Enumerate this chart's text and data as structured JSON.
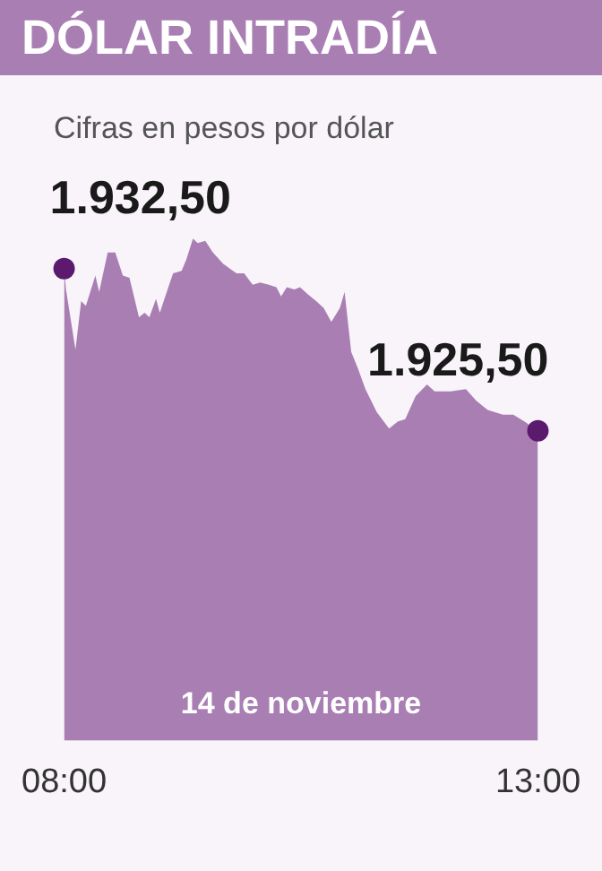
{
  "chart_data": {
    "type": "area",
    "title": "DÓLAR INTRADÍA",
    "subtitle": "Cifras en pesos por dólar",
    "xlabel": "14 de noviembre",
    "x": [
      8.0,
      8.02,
      8.12,
      8.18,
      8.23,
      8.33,
      8.37,
      8.46,
      8.54,
      8.62,
      8.69,
      8.79,
      8.85,
      8.9,
      8.97,
      9.01,
      9.1,
      9.15,
      9.24,
      9.29,
      9.36,
      9.41,
      9.49,
      9.57,
      9.68,
      9.82,
      9.9,
      9.99,
      10.07,
      10.16,
      10.24,
      10.29,
      10.35,
      10.43,
      10.49,
      10.57,
      10.66,
      10.74,
      10.82,
      10.91,
      10.96,
      11.03,
      11.1,
      11.18,
      11.3,
      11.43,
      11.52,
      11.6,
      11.71,
      11.83,
      11.91,
      12.08,
      12.24,
      12.35,
      12.47,
      12.63,
      12.74,
      12.86,
      13.0
    ],
    "xlim": [
      8,
      13
    ],
    "xticks": [
      {
        "value": 8,
        "label": "08:00"
      },
      {
        "value": 13,
        "label": "13:00"
      }
    ],
    "series": [
      {
        "color": "#a97fb3",
        "values": [
          1932.5,
          1931.6,
          1929.0,
          1931.1,
          1930.9,
          1932.2,
          1931.5,
          1933.2,
          1933.2,
          1932.2,
          1932.1,
          1930.4,
          1930.6,
          1930.4,
          1931.2,
          1930.6,
          1931.7,
          1932.3,
          1932.4,
          1932.9,
          1933.8,
          1933.6,
          1933.7,
          1933.2,
          1932.7,
          1932.3,
          1932.3,
          1931.8,
          1931.9,
          1931.8,
          1931.7,
          1931.3,
          1931.7,
          1931.6,
          1931.7,
          1931.4,
          1931.1,
          1930.8,
          1930.2,
          1930.8,
          1931.5,
          1928.9,
          1928.2,
          1927.3,
          1926.3,
          1925.6,
          1925.9,
          1926.0,
          1927.0,
          1927.5,
          1927.2,
          1927.2,
          1927.3,
          1926.8,
          1926.4,
          1926.2,
          1926.2,
          1925.9,
          1925.5
        ],
        "value_labels": [
          "1.932,50",
          null,
          null,
          null,
          null,
          null,
          null,
          null,
          null,
          null,
          null,
          null,
          null,
          null,
          null,
          null,
          null,
          null,
          null,
          null,
          null,
          null,
          null,
          null,
          null,
          null,
          null,
          null,
          null,
          null,
          null,
          null,
          null,
          null,
          null,
          null,
          null,
          null,
          null,
          null,
          null,
          null,
          null,
          null,
          null,
          null,
          null,
          null,
          null,
          null,
          null,
          null,
          null,
          null,
          null,
          null,
          null,
          null,
          "1.925,50"
        ]
      }
    ],
    "grid": false,
    "legend": false
  }
}
